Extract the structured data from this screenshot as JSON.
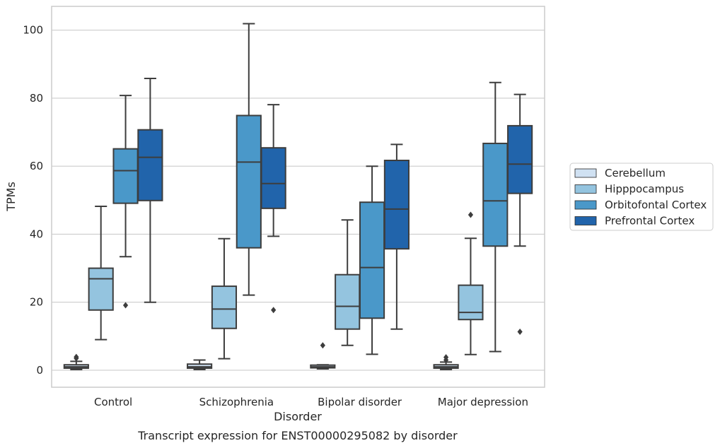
{
  "chart_data": {
    "type": "box",
    "caption": "Transcript expression for ENST00000295082 by disorder",
    "xlabel": "Disorder",
    "ylabel": "TPMs",
    "ylim": [
      -5,
      107
    ],
    "yticks": [
      0,
      20,
      40,
      60,
      80,
      100
    ],
    "grid": "horizontal",
    "legend_position": "right",
    "categories": [
      "Control",
      "Schizophrenia",
      "Bipolar disorder",
      "Major depression"
    ],
    "series": [
      {
        "name": "Cerebellum",
        "color": "#d0e1f2",
        "boxes": [
          {
            "whisker_low": 0.2,
            "q1": 0.6,
            "median": 1.0,
            "q3": 1.6,
            "whisker_high": 2.6,
            "outliers": [
              3.5,
              3.9
            ]
          },
          {
            "whisker_low": 0.2,
            "q1": 0.6,
            "median": 1.0,
            "q3": 1.8,
            "whisker_high": 3.0,
            "outliers": []
          },
          {
            "whisker_low": 0.4,
            "q1": 0.7,
            "median": 1.0,
            "q3": 1.5,
            "whisker_high": 1.6,
            "outliers": [
              7.3
            ]
          },
          {
            "whisker_low": 0.2,
            "q1": 0.6,
            "median": 1.0,
            "q3": 1.6,
            "whisker_high": 2.4,
            "outliers": [
              3.0,
              3.8
            ]
          }
        ]
      },
      {
        "name": "Hipppocampus",
        "color": "#94c4df",
        "boxes": [
          {
            "whisker_low": 9,
            "q1": 17.7,
            "median": 26.9,
            "q3": 30,
            "whisker_high": 48.2,
            "outliers": []
          },
          {
            "whisker_low": 3.4,
            "q1": 12.3,
            "median": 18,
            "q3": 24.7,
            "whisker_high": 38.7,
            "outliers": []
          },
          {
            "whisker_low": 7.3,
            "q1": 12.1,
            "median": 18.8,
            "q3": 28.1,
            "whisker_high": 44.2,
            "outliers": []
          },
          {
            "whisker_low": 4.6,
            "q1": 14.9,
            "median": 17,
            "q3": 25,
            "whisker_high": 38.8,
            "outliers": [
              45.7
            ]
          }
        ]
      },
      {
        "name": "Orbitofontal Cortex",
        "color": "#4a98c9",
        "boxes": [
          {
            "whisker_low": 33.4,
            "q1": 49.1,
            "median": 58.7,
            "q3": 65.1,
            "whisker_high": 80.8,
            "outliers": [
              19.1
            ]
          },
          {
            "whisker_low": 22.1,
            "q1": 36,
            "median": 61.2,
            "q3": 74.9,
            "whisker_high": 101.9,
            "outliers": []
          },
          {
            "whisker_low": 4.7,
            "q1": 15.3,
            "median": 30.2,
            "q3": 49.4,
            "whisker_high": 60,
            "outliers": []
          },
          {
            "whisker_low": 5.5,
            "q1": 36.5,
            "median": 49.8,
            "q3": 66.7,
            "whisker_high": 84.6,
            "outliers": []
          }
        ]
      },
      {
        "name": "Prefrontal Cortex",
        "color": "#2164ab",
        "boxes": [
          {
            "whisker_low": 20,
            "q1": 49.9,
            "median": 62.6,
            "q3": 70.7,
            "whisker_high": 85.8,
            "outliers": []
          },
          {
            "whisker_low": 39.4,
            "q1": 47.6,
            "median": 54.9,
            "q3": 65.4,
            "whisker_high": 78.1,
            "outliers": [
              17.7
            ]
          },
          {
            "whisker_low": 12.1,
            "q1": 35.7,
            "median": 47.4,
            "q3": 61.7,
            "whisker_high": 66.4,
            "outliers": []
          },
          {
            "whisker_low": 36.5,
            "q1": 52,
            "median": 60.6,
            "q3": 71.9,
            "whisker_high": 81.1,
            "outliers": [
              11.3
            ]
          }
        ]
      }
    ]
  }
}
